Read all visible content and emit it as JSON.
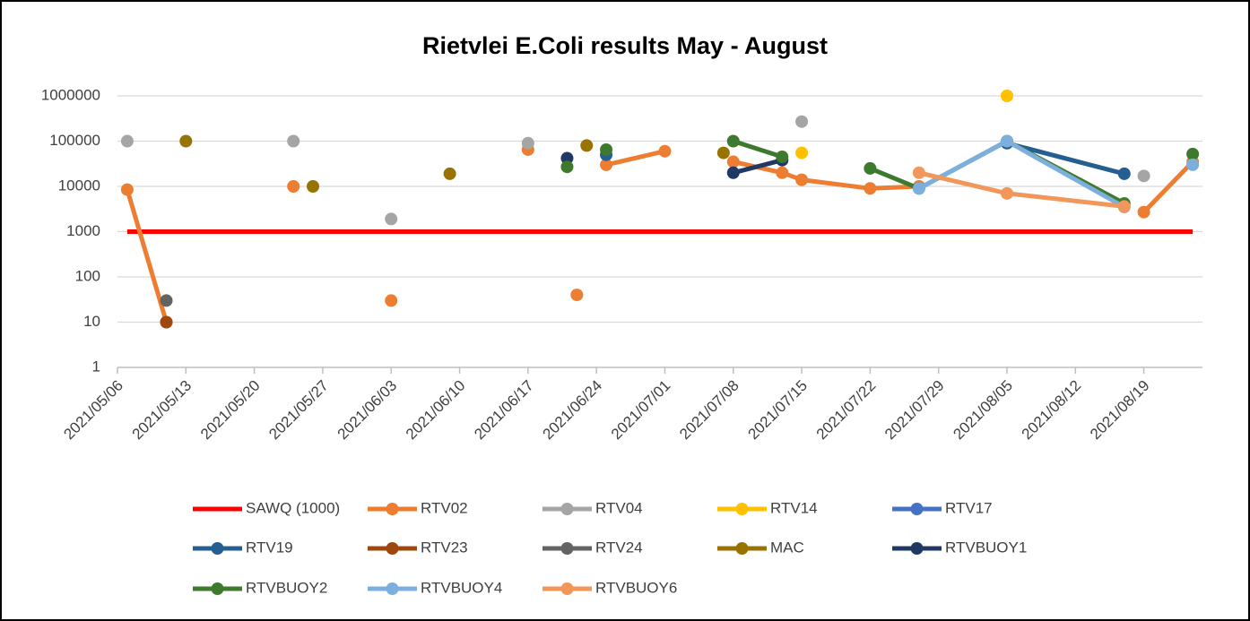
{
  "chart_data": {
    "type": "line",
    "title": "Rietvlei E.Coli results May - August",
    "x": [
      "2021/05/07",
      "2021/05/11",
      "2021/05/13",
      "2021/05/24",
      "2021/05/26",
      "2021/06/03",
      "2021/06/09",
      "2021/06/17",
      "2021/06/21",
      "2021/06/22",
      "2021/06/23",
      "2021/06/25",
      "2021/07/01",
      "2021/07/07",
      "2021/07/08",
      "2021/07/13",
      "2021/07/15",
      "2021/07/22",
      "2021/07/27",
      "2021/08/05",
      "2021/08/17",
      "2021/08/19",
      "2021/08/24"
    ],
    "series": [
      {
        "name": "SAWQ (1000)",
        "color": "#ff0000",
        "marker": false,
        "values": [
          1000,
          1000,
          1000,
          1000,
          1000,
          1000,
          1000,
          1000,
          1000,
          1000,
          1000,
          1000,
          1000,
          1000,
          1000,
          1000,
          1000,
          1000,
          1000,
          1000,
          1000,
          1000,
          1000
        ]
      },
      {
        "name": "RTV02",
        "color": "#ed7d31",
        "values": [
          8500,
          10,
          null,
          10000,
          null,
          30,
          null,
          65000,
          null,
          40,
          null,
          30000,
          60000,
          null,
          35000,
          20000,
          14000,
          9000,
          10000,
          null,
          null,
          2700,
          35000
        ]
      },
      {
        "name": "RTV04",
        "color": "#a5a5a5",
        "values": [
          100000,
          null,
          null,
          100000,
          null,
          1900,
          null,
          90000,
          null,
          null,
          null,
          null,
          null,
          null,
          null,
          null,
          270000,
          null,
          null,
          null,
          null,
          17000,
          null
        ]
      },
      {
        "name": "RTV14",
        "color": "#ffc000",
        "values": [
          null,
          null,
          null,
          null,
          null,
          null,
          null,
          null,
          null,
          null,
          null,
          null,
          null,
          null,
          null,
          null,
          55000,
          null,
          null,
          1000000,
          null,
          null,
          null
        ]
      },
      {
        "name": "RTV17",
        "color": "#4472c4",
        "values": [
          null,
          null,
          null,
          null,
          null,
          null,
          null,
          null,
          null,
          null,
          null,
          null,
          null,
          null,
          null,
          null,
          null,
          null,
          null,
          null,
          null,
          null,
          null
        ]
      },
      {
        "name": "RTV19",
        "color": "#255e91",
        "values": [
          null,
          null,
          null,
          null,
          null,
          null,
          null,
          null,
          null,
          null,
          null,
          50000,
          null,
          null,
          null,
          null,
          null,
          null,
          null,
          90000,
          19000,
          null,
          null
        ]
      },
      {
        "name": "RTV23",
        "color": "#9e480e",
        "values": [
          null,
          10,
          null,
          null,
          null,
          null,
          null,
          null,
          null,
          null,
          null,
          null,
          null,
          null,
          null,
          null,
          null,
          null,
          null,
          null,
          null,
          null,
          null
        ]
      },
      {
        "name": "RTV24",
        "color": "#636363",
        "values": [
          null,
          30,
          null,
          null,
          null,
          null,
          null,
          null,
          null,
          null,
          null,
          null,
          null,
          null,
          null,
          null,
          null,
          null,
          null,
          null,
          null,
          null,
          null
        ]
      },
      {
        "name": "MAC",
        "color": "#997300",
        "values": [
          null,
          null,
          100000,
          null,
          10000,
          null,
          19000,
          null,
          null,
          null,
          80000,
          null,
          null,
          55000,
          null,
          null,
          null,
          null,
          null,
          null,
          null,
          null,
          null
        ]
      },
      {
        "name": "RTVBUOY1",
        "color": "#203864",
        "values": [
          null,
          null,
          null,
          null,
          null,
          null,
          null,
          null,
          42000,
          null,
          null,
          null,
          null,
          null,
          20000,
          38000,
          null,
          null,
          null,
          null,
          null,
          null,
          null
        ]
      },
      {
        "name": "RTVBUOY2",
        "color": "#3e7a2e",
        "values": [
          null,
          null,
          null,
          null,
          null,
          null,
          null,
          null,
          27000,
          null,
          null,
          65000,
          null,
          null,
          100000,
          45000,
          null,
          25000,
          9000,
          100000,
          4200,
          null,
          52000
        ]
      },
      {
        "name": "RTVBUOY4",
        "color": "#7cafdd",
        "values": [
          null,
          null,
          null,
          null,
          null,
          null,
          null,
          null,
          null,
          null,
          null,
          null,
          null,
          null,
          null,
          null,
          null,
          null,
          9000,
          100000,
          3500,
          null,
          30000
        ]
      },
      {
        "name": "RTVBUOY6",
        "color": "#f1975a",
        "values": [
          null,
          null,
          null,
          null,
          null,
          null,
          null,
          null,
          null,
          null,
          null,
          null,
          null,
          null,
          null,
          null,
          null,
          null,
          20000,
          7000,
          3600,
          null,
          null
        ]
      }
    ],
    "xlim": [
      "2021/05/06",
      "2021/08/25"
    ],
    "xticks": [
      "2021/05/06",
      "2021/05/13",
      "2021/05/20",
      "2021/05/27",
      "2021/06/03",
      "2021/06/10",
      "2021/06/17",
      "2021/06/24",
      "2021/07/01",
      "2021/07/08",
      "2021/07/15",
      "2021/07/22",
      "2021/07/29",
      "2021/08/05",
      "2021/08/12",
      "2021/08/19"
    ],
    "ylim": [
      1,
      1000000
    ],
    "yticks": [
      1,
      10,
      100,
      1000,
      10000,
      100000,
      1000000
    ],
    "log_y": true,
    "grid": true,
    "legend": "bottom"
  }
}
